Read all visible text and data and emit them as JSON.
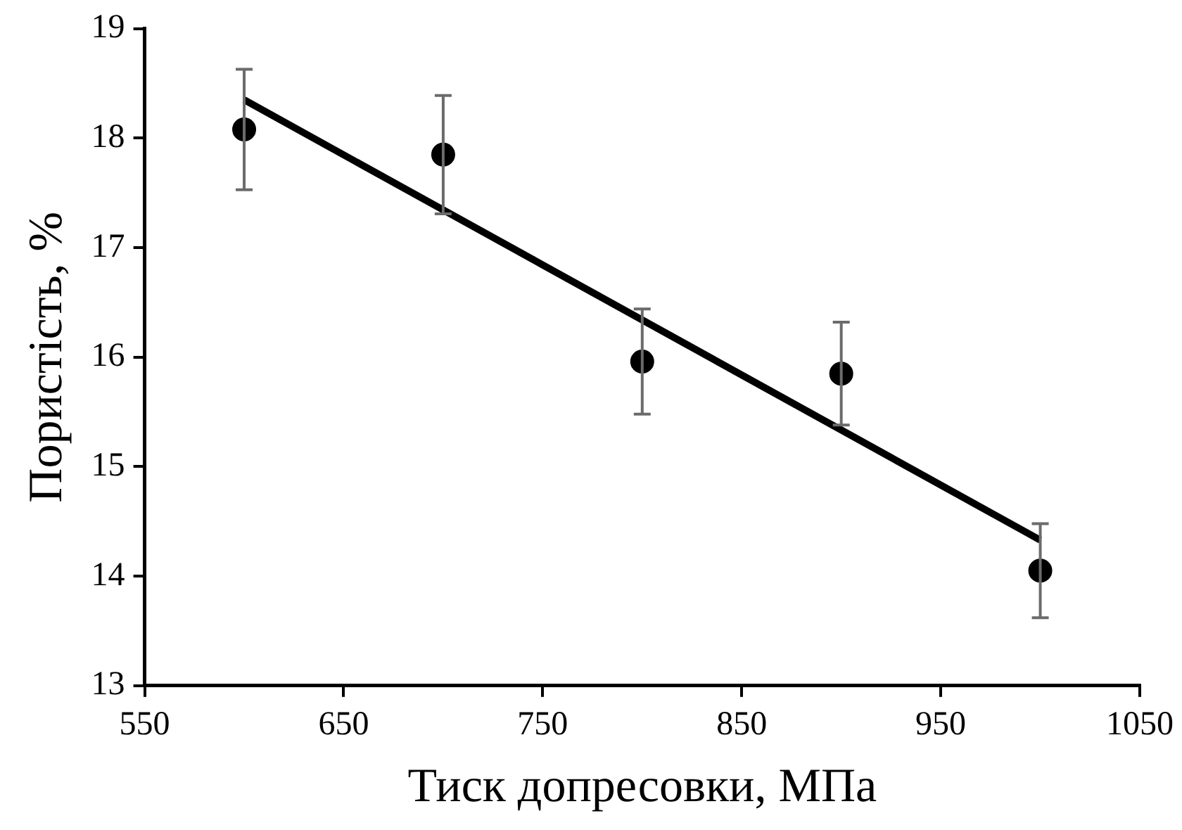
{
  "chart_data": {
    "type": "scatter",
    "xlabel": "Тиск допресовки, МПа",
    "ylabel": "Пористість, %",
    "x": [
      600,
      700,
      800,
      900,
      1000
    ],
    "series": [
      {
        "type": "scatter",
        "color": "#000000",
        "values": [
          18.08,
          17.85,
          15.96,
          15.85,
          14.05
        ],
        "errors": [
          0.55,
          0.54,
          0.48,
          0.47,
          0.43
        ],
        "marker": "circle"
      },
      {
        "type": "line",
        "color": "#000000",
        "x": [
          600,
          1000
        ],
        "values": [
          18.35,
          14.33
        ],
        "marker": "none",
        "line_style": "solid"
      }
    ],
    "xlim": [
      550,
      1050
    ],
    "xticks": [
      550,
      650,
      750,
      850,
      950,
      1050
    ],
    "ylim": [
      13,
      19
    ],
    "yticks": [
      13,
      14,
      15,
      16,
      17,
      18,
      19
    ],
    "grid": false,
    "legend": false
  }
}
